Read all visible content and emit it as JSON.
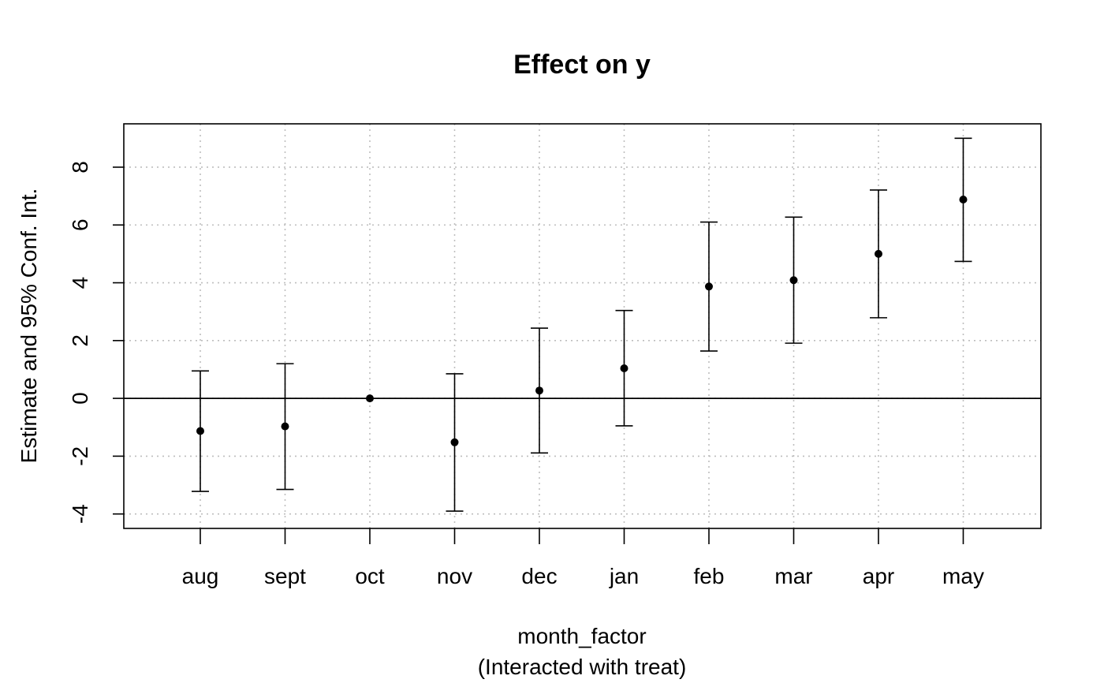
{
  "chart_data": {
    "type": "errorbar",
    "title": "Effect on y",
    "xlabel": "month_factor",
    "xlabel_sub": "(Interacted with treat)",
    "ylabel": "Estimate and 95% Conf. Int.",
    "categories": [
      "aug",
      "sept",
      "oct",
      "nov",
      "dec",
      "jan",
      "feb",
      "mar",
      "apr",
      "may"
    ],
    "estimates": [
      -1.13,
      -0.97,
      0.0,
      -1.52,
      0.27,
      1.04,
      3.87,
      4.09,
      5.0,
      6.88
    ],
    "ci_lower": [
      -3.22,
      -3.15,
      0.0,
      -3.9,
      -1.89,
      -0.95,
      1.64,
      1.91,
      2.79,
      4.74
    ],
    "ci_upper": [
      0.95,
      1.2,
      0.0,
      0.85,
      2.43,
      3.04,
      6.1,
      6.27,
      7.21,
      9.0
    ],
    "ylim": [
      -4.5,
      9.5
    ],
    "yticks": [
      -4,
      -2,
      0,
      2,
      4,
      6,
      8
    ],
    "ytick_labels": [
      "-4",
      "-2",
      "0",
      "2",
      "4",
      "6",
      "8"
    ],
    "reference_line": 0,
    "grid": true,
    "colors": {
      "points": "#000000",
      "grid": "#bebebe",
      "axis": "#000000"
    }
  }
}
